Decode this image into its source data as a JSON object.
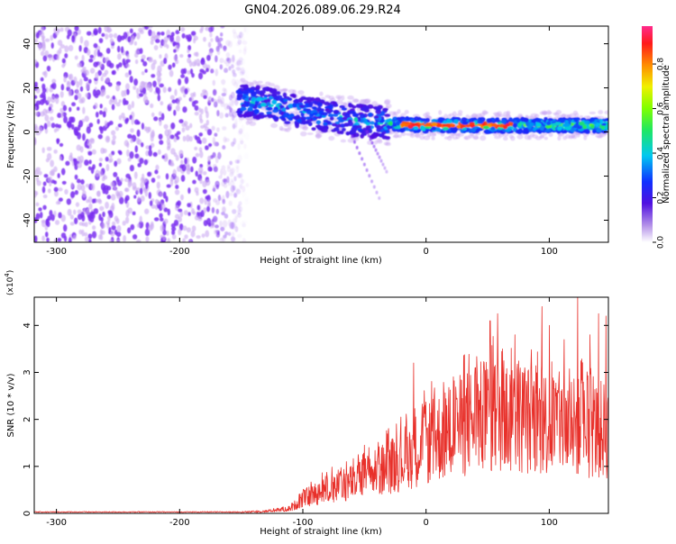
{
  "title": "GN04.2026.089.06.29.R24",
  "colors": {
    "snr_line": "#e8302a",
    "scatter_purple": "#7a2ef0",
    "scatter_light": "#c9a8f2"
  },
  "chart_data": [
    {
      "type": "heatmap",
      "name": "spectrogram",
      "xlabel": "Height of straight line (km)",
      "ylabel": "Frequency (Hz)",
      "xlim": [
        -318,
        148
      ],
      "ylim": [
        -50,
        48
      ],
      "xticks": [
        -300,
        -200,
        -100,
        0,
        100
      ],
      "yticks": [
        -40,
        -20,
        0,
        20,
        40
      ],
      "xtick_labels": [
        "-300",
        "-200",
        "-100",
        "0",
        "100"
      ],
      "ytick_labels": [
        "-40",
        "-20",
        "0",
        "20",
        "40"
      ],
      "noise_region_x": [
        -318,
        -145
      ],
      "signal_band_center_hz": [
        [
          -150,
          14
        ],
        [
          -130,
          13
        ],
        [
          -110,
          10
        ],
        [
          -90,
          8
        ],
        [
          -70,
          6
        ],
        [
          -50,
          5
        ],
        [
          -30,
          4
        ],
        [
          -10,
          3
        ],
        [
          10,
          3
        ],
        [
          40,
          3
        ],
        [
          70,
          3
        ],
        [
          100,
          3
        ],
        [
          130,
          3
        ],
        [
          148,
          3
        ]
      ],
      "colorbar": {
        "label": "Normalized spectral amplitude",
        "range": [
          0.0,
          0.97
        ],
        "ticks": [
          0.0,
          0.2,
          0.4,
          0.6,
          0.8
        ],
        "tick_labels": [
          "0.0",
          "0.2",
          "0.4",
          "0.6",
          "0.8"
        ]
      }
    },
    {
      "type": "line",
      "name": "snr",
      "xlabel": "Height of straight line (km)",
      "ylabel": "SNR (10 * v/v)",
      "scale_label": "(x10",
      "scale_exponent": "4",
      "xlim": [
        -318,
        148
      ],
      "ylim": [
        0,
        4.6
      ],
      "xticks": [
        -300,
        -200,
        -100,
        0,
        100
      ],
      "yticks": [
        0,
        1,
        2,
        3,
        4
      ],
      "xtick_labels": [
        "-300",
        "-200",
        "-100",
        "0",
        "100"
      ],
      "ytick_labels": [
        "0",
        "1",
        "2",
        "3",
        "4"
      ],
      "envelope": [
        [
          -318,
          0.03
        ],
        [
          -150,
          0.03
        ],
        [
          -130,
          0.05
        ],
        [
          -110,
          0.12
        ],
        [
          -100,
          0.35
        ],
        [
          -80,
          0.6
        ],
        [
          -60,
          0.75
        ],
        [
          -40,
          1.0
        ],
        [
          -20,
          1.3
        ],
        [
          0,
          1.7
        ],
        [
          20,
          2.0
        ],
        [
          40,
          2.3
        ],
        [
          60,
          2.4
        ],
        [
          80,
          2.3
        ],
        [
          100,
          2.2
        ],
        [
          120,
          2.1
        ],
        [
          148,
          2.0
        ]
      ],
      "spikes": [
        [
          -100,
          0.42
        ],
        [
          -80,
          0.72
        ],
        [
          -55,
          1.25
        ],
        [
          -50,
          1.45
        ],
        [
          -36,
          1.4
        ],
        [
          -10,
          3.2
        ],
        [
          5,
          1.75
        ],
        [
          25,
          2.45
        ],
        [
          40,
          3.1
        ],
        [
          52,
          4.1
        ],
        [
          58,
          4.25
        ],
        [
          62,
          3.5
        ],
        [
          72,
          3.8
        ],
        [
          80,
          3.1
        ],
        [
          94,
          4.4
        ],
        [
          100,
          4.0
        ],
        [
          112,
          3.7
        ],
        [
          123,
          4.6
        ],
        [
          133,
          3.8
        ],
        [
          140,
          4.25
        ],
        [
          146,
          4.2
        ]
      ]
    }
  ]
}
